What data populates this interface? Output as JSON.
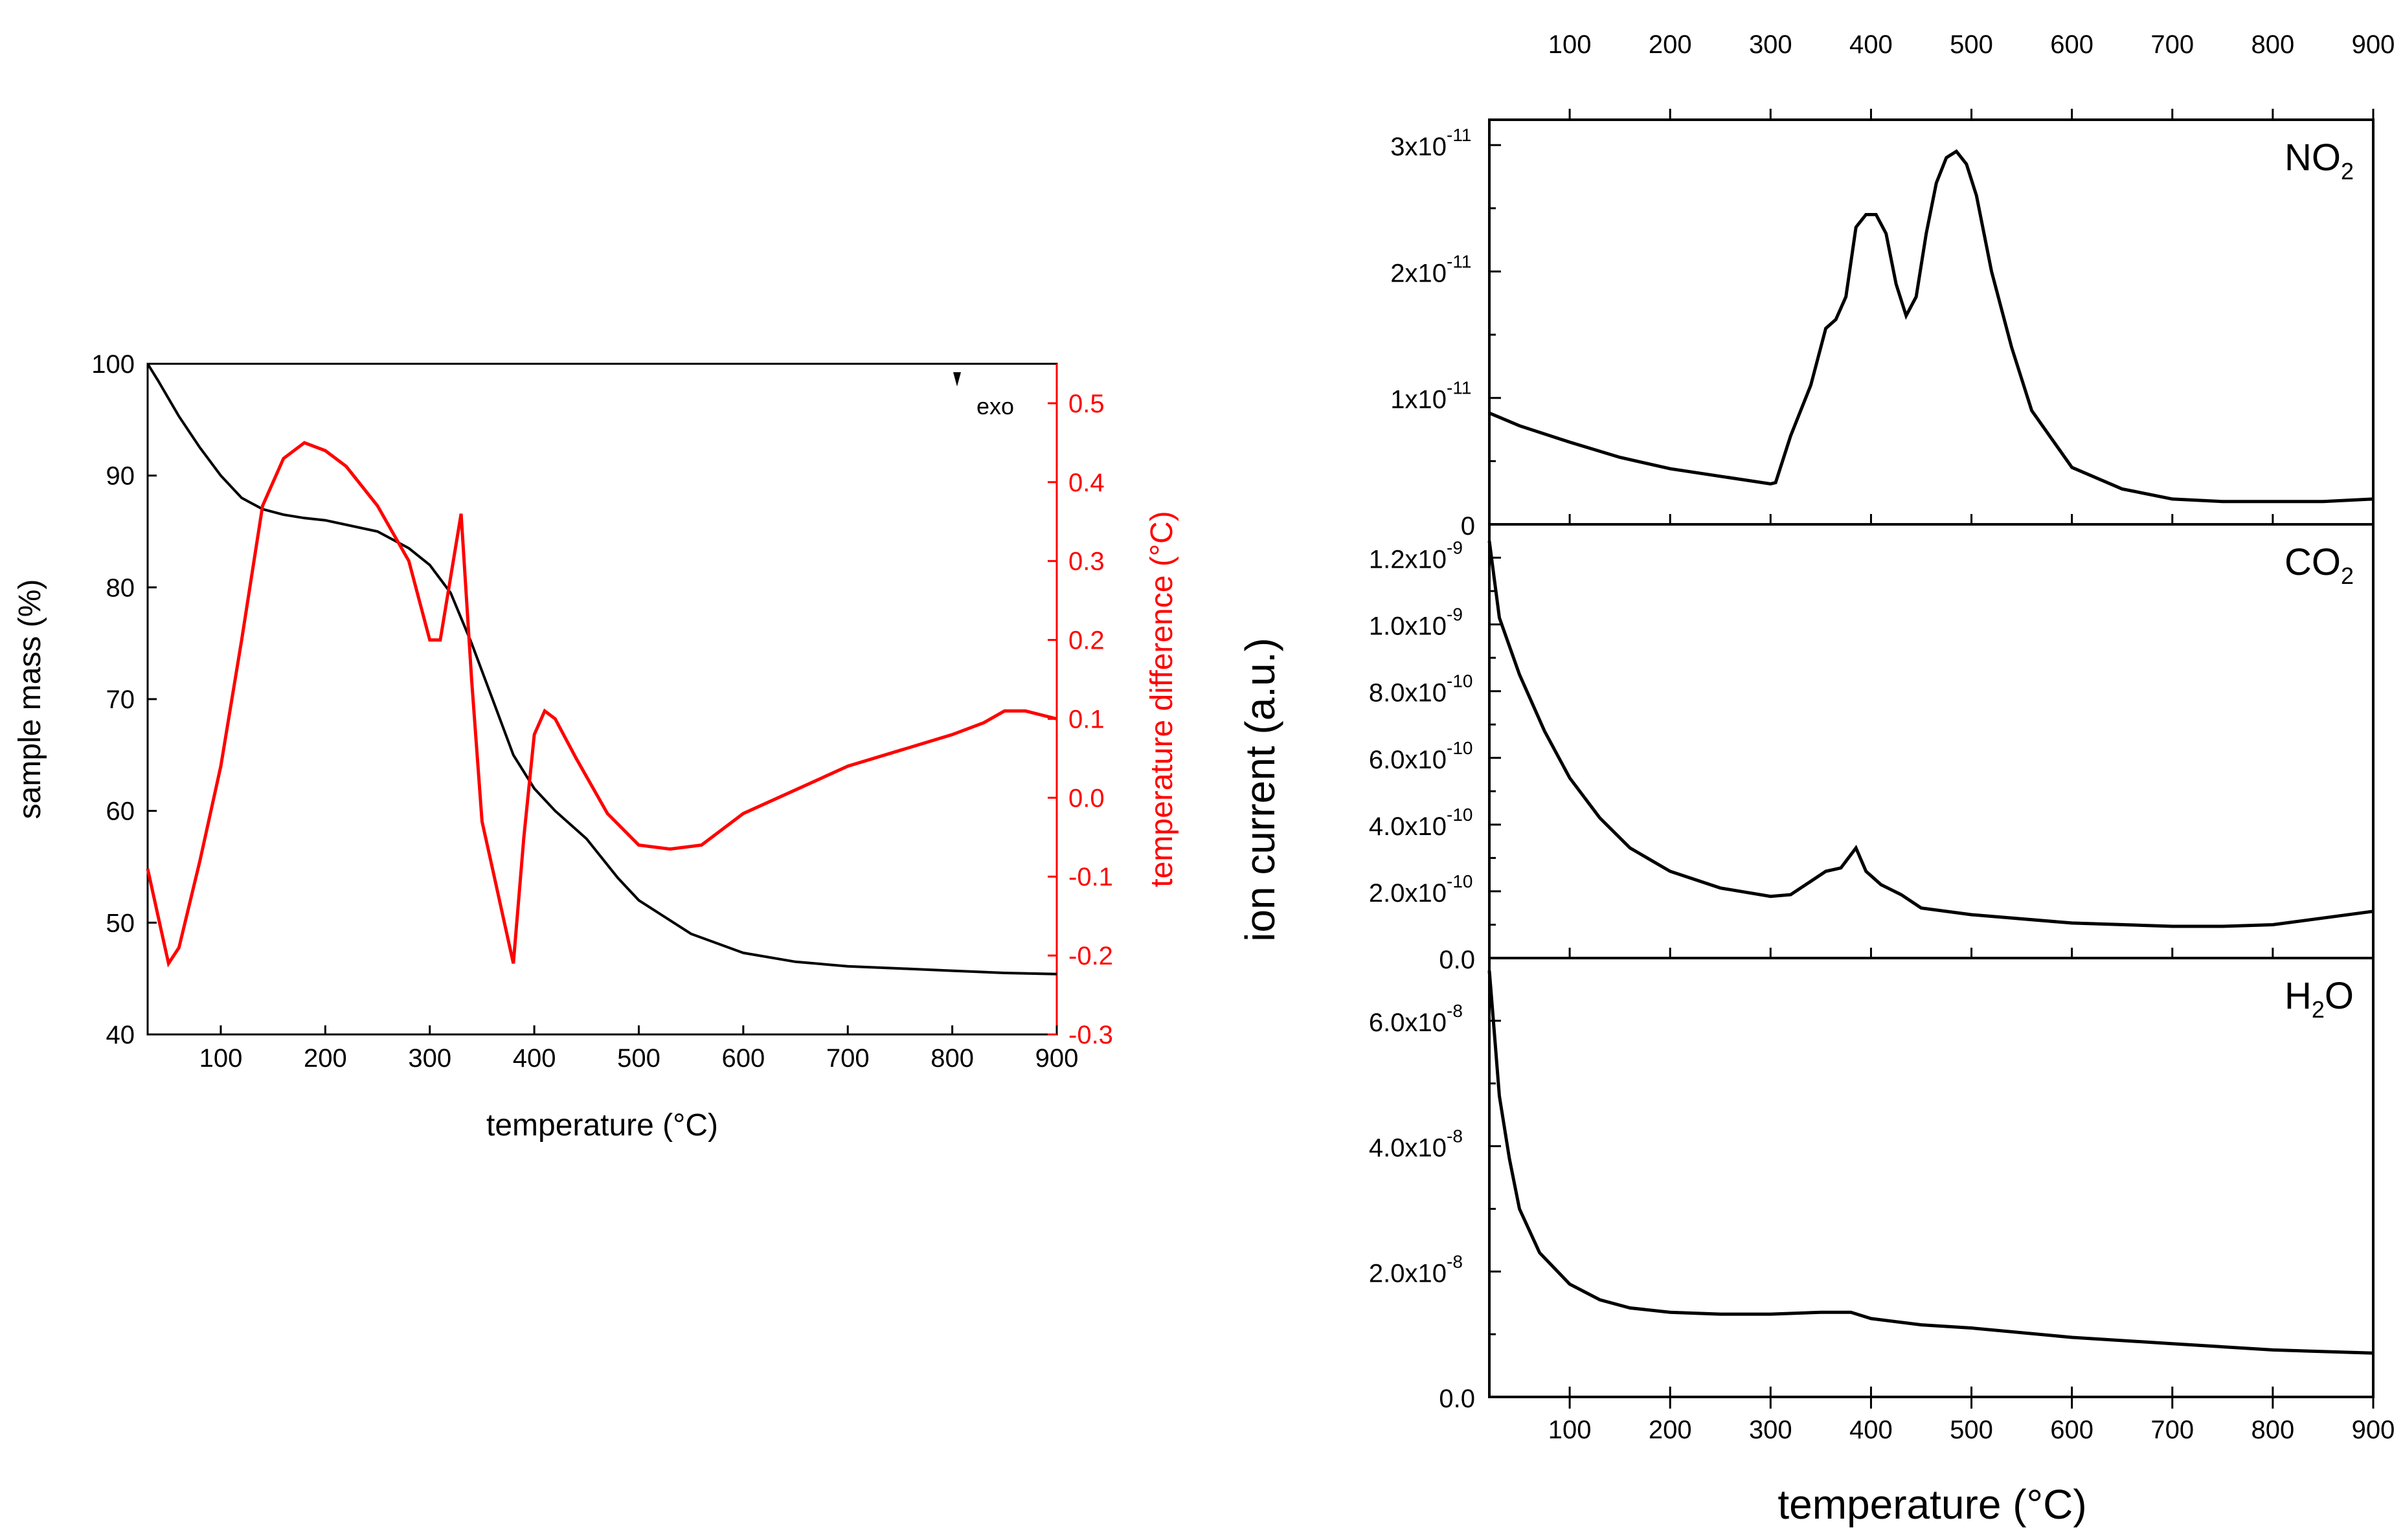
{
  "chart_data": [
    {
      "type": "line",
      "title": "",
      "xlabel": "temperature (°C)",
      "ylabel": "sample mass (%)",
      "y2label": "temperature difference (°C)",
      "xlim": [
        30,
        900
      ],
      "ylim": [
        40,
        100
      ],
      "y2lim": [
        -0.3,
        0.55
      ],
      "x_ticks": [
        "100",
        "200",
        "300",
        "400",
        "500",
        "600",
        "700",
        "800",
        "900"
      ],
      "y_ticks": [
        "40",
        "50",
        "60",
        "70",
        "80",
        "90",
        "100"
      ],
      "y2_ticks": [
        "-0.3",
        "-0.2",
        "-0.1",
        "0.0",
        "0.1",
        "0.2",
        "0.3",
        "0.4",
        "0.5"
      ],
      "annotation": "exo",
      "series": [
        {
          "name": "sample mass",
          "axis": "left",
          "color": "#000000",
          "x": [
            30,
            40,
            60,
            80,
            100,
            120,
            140,
            160,
            180,
            200,
            250,
            280,
            300,
            320,
            340,
            360,
            380,
            400,
            420,
            450,
            480,
            500,
            550,
            600,
            650,
            700,
            750,
            800,
            850,
            900
          ],
          "y": [
            100,
            98.5,
            95.3,
            92.5,
            90,
            88,
            87,
            86.5,
            86.2,
            86,
            85,
            83.5,
            82,
            79.5,
            75,
            70,
            65,
            62,
            60,
            57.5,
            54,
            52,
            49,
            47.3,
            46.5,
            46.1,
            45.9,
            45.7,
            45.5,
            45.4
          ]
        },
        {
          "name": "temperature difference",
          "axis": "right",
          "color": "#ff0000",
          "x": [
            30,
            40,
            50,
            60,
            80,
            100,
            120,
            140,
            160,
            180,
            200,
            220,
            250,
            280,
            300,
            310,
            320,
            330,
            340,
            350,
            360,
            370,
            380,
            390,
            400,
            410,
            420,
            440,
            470,
            500,
            530,
            560,
            600,
            650,
            700,
            750,
            800,
            830,
            850,
            870,
            900
          ],
          "y": [
            -0.09,
            -0.15,
            -0.21,
            -0.19,
            -0.08,
            0.04,
            0.2,
            0.37,
            0.43,
            0.45,
            0.44,
            0.42,
            0.37,
            0.3,
            0.2,
            0.2,
            0.28,
            0.36,
            0.15,
            -0.03,
            -0.09,
            -0.15,
            -0.21,
            -0.05,
            0.08,
            0.11,
            0.1,
            0.05,
            -0.02,
            -0.06,
            -0.065,
            -0.06,
            -0.02,
            0.01,
            0.04,
            0.06,
            0.08,
            0.095,
            0.11,
            0.11,
            0.1
          ]
        }
      ]
    },
    {
      "type": "line",
      "title": "",
      "xlabel": "temperature (°C)",
      "ylabel": "ion current (a.u.)",
      "xlim": [
        20,
        900
      ],
      "x_ticks": [
        "100",
        "200",
        "300",
        "400",
        "500",
        "600",
        "700",
        "800",
        "900"
      ],
      "panels": [
        {
          "name": "NO",
          "subscript": "2",
          "ylim": [
            0,
            3.2e-11
          ],
          "y_ticks": [
            "0",
            "1x10",
            "2x10",
            "3x10"
          ],
          "y_tick_exponents": [
            "",
            "-11",
            "-11",
            "-11"
          ],
          "x": [
            20,
            50,
            100,
            150,
            200,
            250,
            300,
            305,
            320,
            340,
            355,
            365,
            375,
            385,
            395,
            405,
            415,
            425,
            435,
            445,
            455,
            465,
            475,
            485,
            495,
            505,
            520,
            540,
            560,
            600,
            650,
            700,
            750,
            800,
            850,
            900
          ],
          "y": [
            8.8e-12,
            7.8e-12,
            6.5e-12,
            5.3e-12,
            4.4e-12,
            3.8e-12,
            3.2e-12,
            3.3e-12,
            7e-12,
            1.1e-11,
            1.55e-11,
            1.62e-11,
            1.8e-11,
            2.35e-11,
            2.45e-11,
            2.45e-11,
            2.3e-11,
            1.9e-11,
            1.65e-11,
            1.8e-11,
            2.3e-11,
            2.7e-11,
            2.9e-11,
            2.95e-11,
            2.85e-11,
            2.6e-11,
            2e-11,
            1.4e-11,
            9e-12,
            4.5e-12,
            2.8e-12,
            2e-12,
            1.8e-12,
            1.8e-12,
            1.8e-12,
            2e-12
          ]
        },
        {
          "name": "CO",
          "subscript": "2",
          "ylim": [
            0,
            1.3e-09
          ],
          "y_ticks": [
            "0.0",
            "2.0x10",
            "4.0x10",
            "6.0x10",
            "8.0x10",
            "1.0x10",
            "1.2x10"
          ],
          "y_tick_exponents": [
            "",
            "-10",
            "-10",
            "-10",
            "-10",
            "-9",
            "-9"
          ],
          "x": [
            20,
            30,
            50,
            75,
            100,
            130,
            160,
            200,
            250,
            300,
            320,
            340,
            355,
            370,
            380,
            385,
            395,
            410,
            430,
            450,
            500,
            600,
            700,
            750,
            800,
            850,
            900
          ],
          "y": [
            1.25e-09,
            1.02e-09,
            8.5e-10,
            6.8e-10,
            5.4e-10,
            4.2e-10,
            3.3e-10,
            2.6e-10,
            2.1e-10,
            1.85e-10,
            1.9e-10,
            2.3e-10,
            2.6e-10,
            2.7e-10,
            3.1e-10,
            3.3e-10,
            2.6e-10,
            2.2e-10,
            1.9e-10,
            1.5e-10,
            1.3e-10,
            1.05e-10,
            9.5e-11,
            9.5e-11,
            1e-10,
            1.2e-10,
            1.4e-10
          ]
        },
        {
          "name": "H",
          "subscript": "2",
          "suffix": "O",
          "ylim": [
            0,
            7e-08
          ],
          "y_ticks": [
            "0.0",
            "2.0x10",
            "4.0x10",
            "6.0x10"
          ],
          "y_tick_exponents": [
            "",
            "-8",
            "-8",
            "-8"
          ],
          "x": [
            20,
            25,
            30,
            40,
            50,
            70,
            100,
            130,
            160,
            200,
            250,
            300,
            350,
            380,
            400,
            450,
            500,
            600,
            700,
            800,
            900
          ],
          "y": [
            6.8e-08,
            5.8e-08,
            4.8e-08,
            3.8e-08,
            3e-08,
            2.3e-08,
            1.8e-08,
            1.55e-08,
            1.42e-08,
            1.35e-08,
            1.32e-08,
            1.32e-08,
            1.35e-08,
            1.35e-08,
            1.25e-08,
            1.15e-08,
            1.1e-08,
            9.5e-09,
            8.5e-09,
            7.5e-09,
            7e-09
          ]
        }
      ]
    }
  ]
}
